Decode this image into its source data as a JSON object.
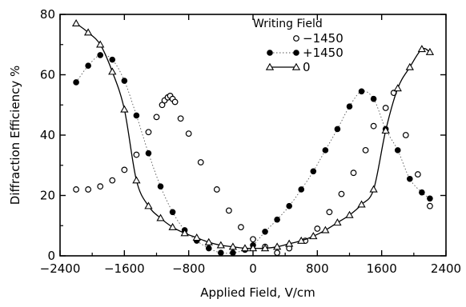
{
  "chart_data": {
    "type": "scatter",
    "title": "",
    "xlabel": "Applied Field, V/cm",
    "ylabel": "Diffraction Efficiency %",
    "xlim": [
      -2400,
      2400
    ],
    "ylim": [
      0,
      80
    ],
    "x_ticks": [
      "-2400",
      "-1600",
      "-800",
      "0",
      "800",
      "1600",
      "2400"
    ],
    "y_ticks": [
      "0",
      "20",
      "40",
      "60",
      "80"
    ],
    "grid": false,
    "legend": {
      "title": "Writing Field",
      "placement": "top-right",
      "entries": [
        "-1450",
        "+1450",
        "0"
      ]
    },
    "series": [
      {
        "name": "-1450",
        "marker": "open-circle",
        "line": "none",
        "points": [
          [
            -2200,
            22
          ],
          [
            -2050,
            22
          ],
          [
            -1900,
            23
          ],
          [
            -1750,
            25
          ],
          [
            -1600,
            28.5
          ],
          [
            -1450,
            33.5
          ],
          [
            -1300,
            41
          ],
          [
            -1200,
            46
          ],
          [
            -1130,
            50
          ],
          [
            -1100,
            51.5
          ],
          [
            -1060,
            52.5
          ],
          [
            -1030,
            53
          ],
          [
            -1000,
            52
          ],
          [
            -970,
            51
          ],
          [
            -900,
            45.5
          ],
          [
            -800,
            40.5
          ],
          [
            -650,
            31
          ],
          [
            -450,
            22
          ],
          [
            -300,
            15
          ],
          [
            -150,
            9.5
          ],
          [
            0,
            5.5
          ],
          [
            150,
            3
          ],
          [
            300,
            1
          ],
          [
            450,
            2.5
          ],
          [
            650,
            5
          ],
          [
            800,
            9
          ],
          [
            950,
            14.5
          ],
          [
            1100,
            20.5
          ],
          [
            1250,
            27.5
          ],
          [
            1400,
            35
          ],
          [
            1500,
            43
          ],
          [
            1650,
            49
          ],
          [
            1750,
            54
          ],
          [
            1900,
            40
          ],
          [
            2050,
            27
          ],
          [
            2200,
            16.5
          ]
        ]
      },
      {
        "name": "+1450",
        "marker": "filled-circle",
        "line": "dotted",
        "points": [
          [
            -2200,
            57.5
          ],
          [
            -2050,
            63
          ],
          [
            -1900,
            66.5
          ],
          [
            -1750,
            65
          ],
          [
            -1600,
            58
          ],
          [
            -1450,
            46.5
          ],
          [
            -1300,
            34
          ],
          [
            -1150,
            23
          ],
          [
            -1000,
            14.5
          ],
          [
            -850,
            8.5
          ],
          [
            -700,
            5
          ],
          [
            -550,
            2.5
          ],
          [
            -400,
            1
          ],
          [
            -250,
            1
          ],
          [
            -100,
            2
          ],
          [
            0,
            3.5
          ],
          [
            150,
            8
          ],
          [
            300,
            12
          ],
          [
            450,
            16.5
          ],
          [
            600,
            22
          ],
          [
            750,
            28
          ],
          [
            900,
            35
          ],
          [
            1050,
            42
          ],
          [
            1200,
            49.5
          ],
          [
            1350,
            54.5
          ],
          [
            1500,
            52
          ],
          [
            1650,
            42
          ],
          [
            1800,
            35
          ],
          [
            1950,
            25.5
          ],
          [
            2100,
            21
          ],
          [
            2200,
            19
          ]
        ]
      },
      {
        "name": "0",
        "marker": "open-triangle",
        "line": "solid",
        "points": [
          [
            -2200,
            77
          ],
          [
            -2050,
            74
          ],
          [
            -1900,
            70
          ],
          [
            -1750,
            61
          ],
          [
            -1600,
            48.5
          ],
          [
            -1450,
            25
          ],
          [
            -1300,
            16.5
          ],
          [
            -1150,
            12.5
          ],
          [
            -1000,
            9.5
          ],
          [
            -850,
            7.5
          ],
          [
            -700,
            6
          ],
          [
            -550,
            4.5
          ],
          [
            -400,
            3.5
          ],
          [
            -250,
            3
          ],
          [
            -100,
            2.5
          ],
          [
            0,
            2.5
          ],
          [
            150,
            2.5
          ],
          [
            300,
            3
          ],
          [
            450,
            4
          ],
          [
            600,
            5
          ],
          [
            750,
            6.5
          ],
          [
            900,
            8.5
          ],
          [
            1050,
            11
          ],
          [
            1200,
            13.5
          ],
          [
            1350,
            17
          ],
          [
            1500,
            22
          ],
          [
            1650,
            41.5
          ],
          [
            1800,
            55.5
          ],
          [
            1950,
            62.5
          ],
          [
            2100,
            68.5
          ],
          [
            2200,
            67.5
          ]
        ]
      }
    ]
  }
}
